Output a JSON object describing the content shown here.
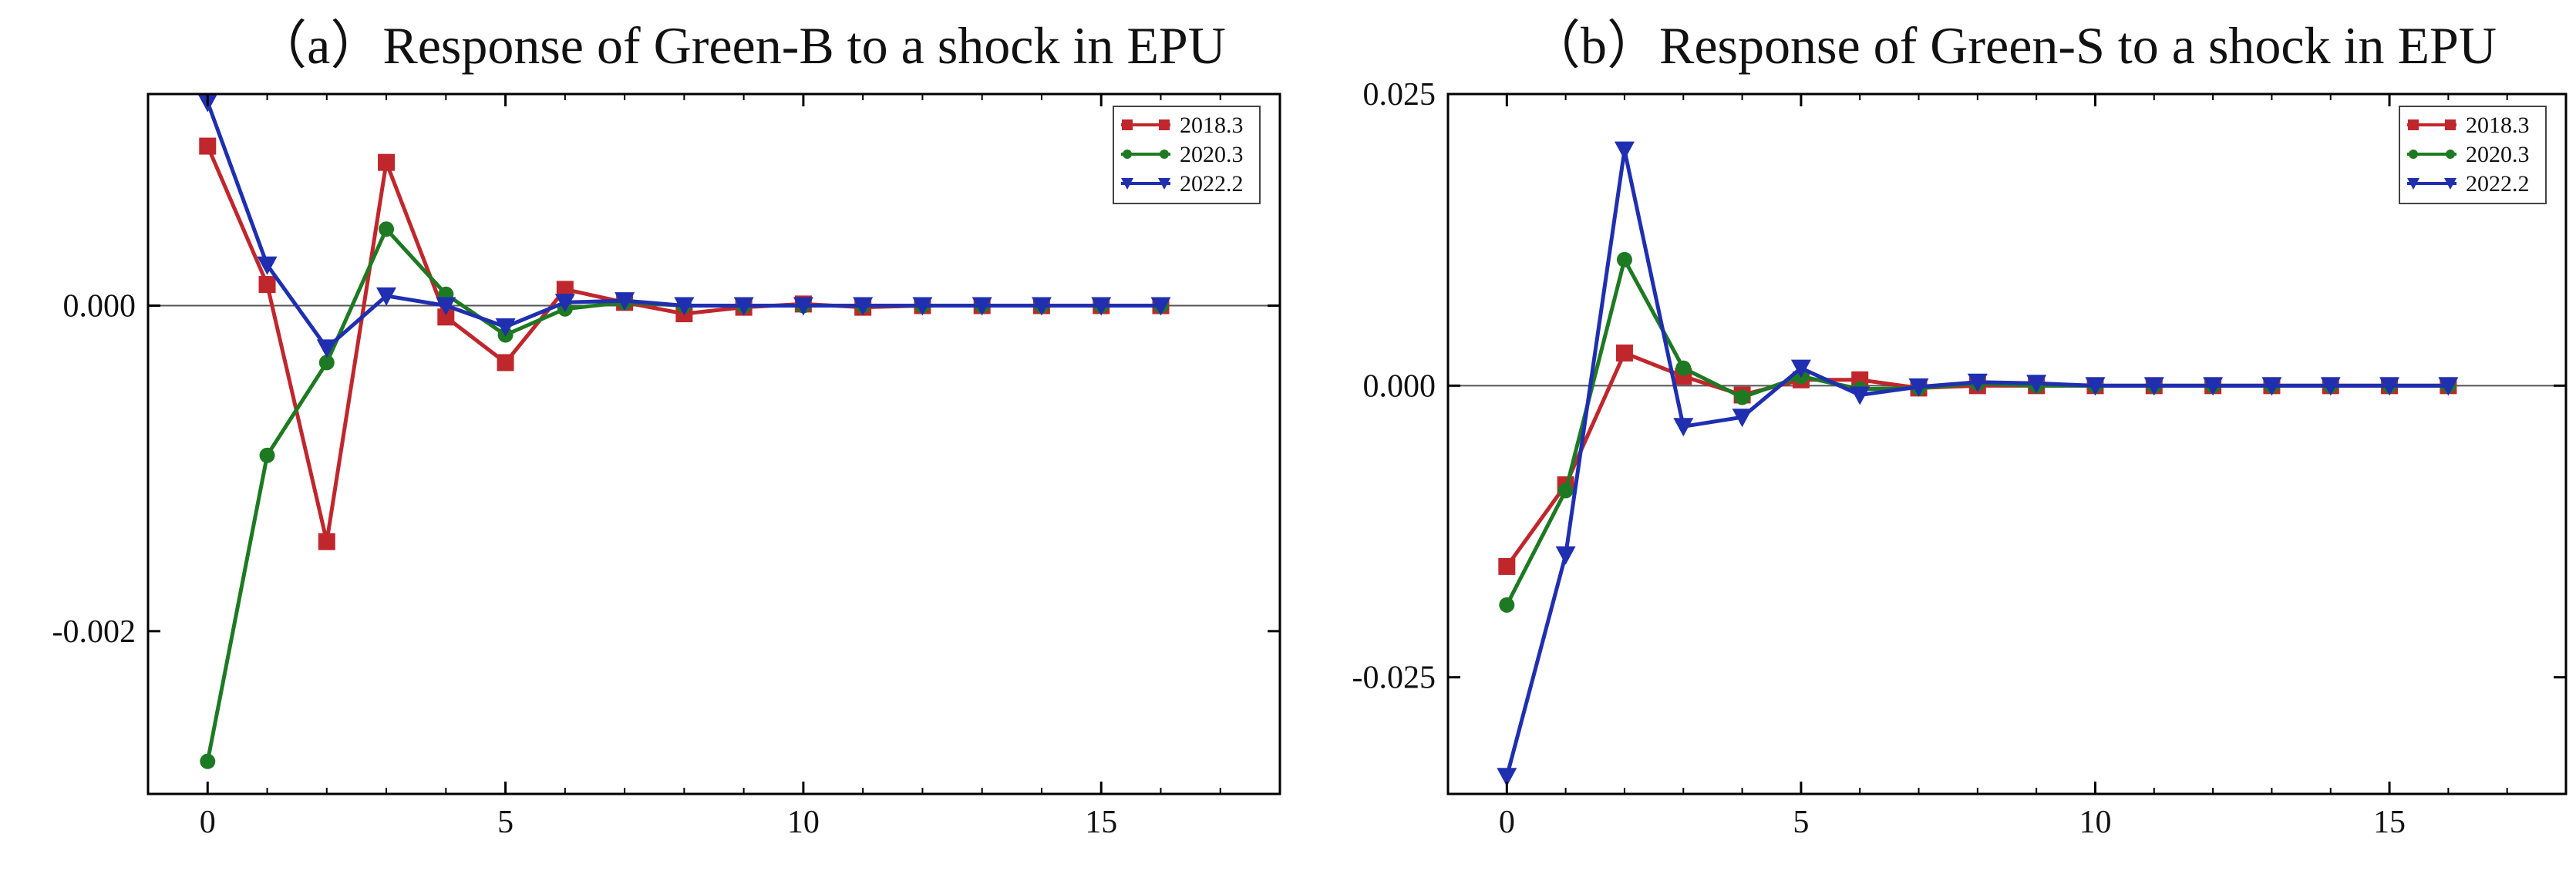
{
  "chart_data": [
    {
      "type": "line",
      "title": "（a）Response of Green-B to a shock in EPU",
      "xlabel": "",
      "ylabel": "",
      "xlim": [
        -1,
        18
      ],
      "ylim": [
        -0.003,
        0.0013
      ],
      "x_ticks": [
        0,
        5,
        10,
        15
      ],
      "y_ticks": [
        0.0,
        -0.002
      ],
      "y_tick_labels": [
        "0.000",
        "-0.002"
      ],
      "x": [
        0,
        1,
        2,
        3,
        4,
        5,
        6,
        7,
        8,
        9,
        10,
        11,
        12,
        13,
        14,
        15,
        16
      ],
      "zero_line": true,
      "grid": false,
      "legend_position": "top-right",
      "series": [
        {
          "name": "2018.3",
          "color": "#c0272d",
          "marker": "square",
          "values": [
            0.00098,
            0.00013,
            -0.00145,
            0.00088,
            -7e-05,
            -0.00035,
            0.0001,
            2e-05,
            -5e-05,
            -1e-05,
            1e-05,
            -1e-05,
            0.0,
            0.0,
            0.0,
            0.0,
            0.0
          ]
        },
        {
          "name": "2020.3",
          "color": "#1e7a22",
          "marker": "circle",
          "values": [
            -0.0028,
            -0.00092,
            -0.00035,
            0.00047,
            7e-05,
            -0.00018,
            -2e-05,
            2e-05,
            0.0,
            0.0,
            0.0,
            0.0,
            0.0,
            0.0,
            0.0,
            0.0,
            0.0
          ]
        },
        {
          "name": "2022.2",
          "color": "#1f2fb0",
          "marker": "triangle-down",
          "values": [
            0.00125,
            0.00025,
            -0.00026,
            6e-05,
            0.0,
            -0.00013,
            2e-05,
            3e-05,
            0.0,
            0.0,
            0.0,
            0.0,
            0.0,
            0.0,
            0.0,
            0.0,
            0.0
          ]
        }
      ]
    },
    {
      "type": "line",
      "title": "（b）Response of Green-S to a shock in EPU",
      "xlabel": "",
      "ylabel": "",
      "xlim": [
        -1,
        18
      ],
      "ylim": [
        -0.035,
        0.025
      ],
      "x_ticks": [
        0,
        5,
        10,
        15
      ],
      "y_ticks": [
        0.025,
        0.0,
        -0.025
      ],
      "y_tick_labels": [
        "0.025",
        "0.000",
        "-0.025"
      ],
      "x": [
        0,
        1,
        2,
        3,
        4,
        5,
        6,
        7,
        8,
        9,
        10,
        11,
        12,
        13,
        14,
        15,
        16
      ],
      "zero_line": true,
      "grid": false,
      "legend_position": "top-right",
      "series": [
        {
          "name": "2018.3",
          "color": "#c0272d",
          "marker": "square",
          "values": [
            -0.0155,
            -0.0085,
            0.0028,
            0.0008,
            -0.0008,
            0.0005,
            0.0005,
            -0.0002,
            0.0,
            0.0,
            0.0,
            0.0,
            0.0,
            0.0,
            0.0,
            0.0,
            0.0
          ]
        },
        {
          "name": "2020.3",
          "color": "#1e7a22",
          "marker": "circle",
          "values": [
            -0.0188,
            -0.009,
            0.0108,
            0.0015,
            -0.001,
            0.0008,
            -0.0003,
            -0.0002,
            0.0002,
            0.0,
            0.0,
            0.0,
            0.0,
            0.0,
            0.0,
            0.0,
            0.0
          ]
        },
        {
          "name": "2022.2",
          "color": "#1f2fb0",
          "marker": "triangle-down",
          "values": [
            -0.0335,
            -0.0145,
            0.0202,
            -0.0035,
            -0.0027,
            0.0015,
            -0.0008,
            -0.0001,
            0.0003,
            0.0002,
            0.0,
            0.0,
            0.0,
            0.0,
            0.0,
            0.0,
            0.0
          ]
        }
      ]
    }
  ]
}
